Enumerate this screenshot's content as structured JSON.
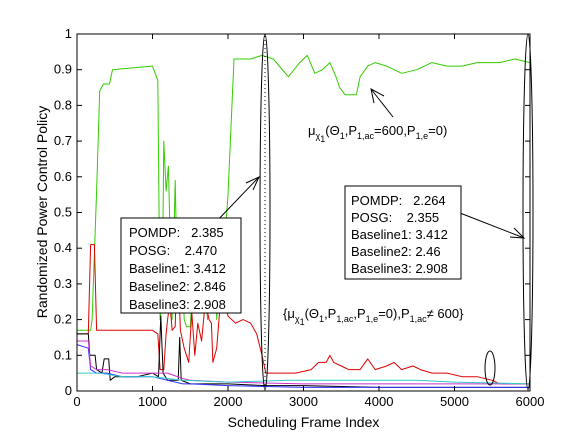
{
  "chart_data": {
    "type": "line",
    "xlabel": "Scheduling Frame Index",
    "ylabel": "Randomized Power Control Policy",
    "xlim": [
      0,
      6000
    ],
    "ylim": [
      0,
      1
    ],
    "x_ticks": [
      "0",
      "1000",
      "2000",
      "3000",
      "4000",
      "5000",
      "6000"
    ],
    "y_ticks": [
      "0",
      "0.1",
      "0.2",
      "0.3",
      "0.4",
      "0.5",
      "0.6",
      "0.7",
      "0.8",
      "0.9",
      "1"
    ],
    "grid": false,
    "series": [
      {
        "color": "#33cc00",
        "points": [
          [
            0,
            0.17
          ],
          [
            180,
            0.17
          ],
          [
            200,
            0.2
          ],
          [
            260,
            0.56
          ],
          [
            300,
            0.84
          ],
          [
            350,
            0.86
          ],
          [
            430,
            0.86
          ],
          [
            470,
            0.9
          ],
          [
            1000,
            0.91
          ],
          [
            1070,
            0.87
          ],
          [
            1100,
            0.2
          ],
          [
            1130,
            0.27
          ],
          [
            1150,
            0.7
          ],
          [
            1180,
            0.56
          ],
          [
            1210,
            0.63
          ],
          [
            1260,
            0.2
          ],
          [
            1300,
            0.59
          ],
          [
            1320,
            0.39
          ],
          [
            1380,
            0.46
          ],
          [
            1400,
            0.32
          ],
          [
            1420,
            0.2
          ],
          [
            1450,
            0.18
          ],
          [
            1500,
            0.18
          ],
          [
            1550,
            0.37
          ],
          [
            1600,
            0.4
          ],
          [
            1660,
            0.26
          ],
          [
            1700,
            0.28
          ],
          [
            1730,
            0.2
          ],
          [
            1790,
            0.41
          ],
          [
            1820,
            0.48
          ],
          [
            1850,
            0.2
          ],
          [
            1870,
            0.25
          ],
          [
            1920,
            0.47
          ],
          [
            1960,
            0.43
          ],
          [
            2000,
            0.55
          ],
          [
            2080,
            0.93
          ],
          [
            2300,
            0.93
          ],
          [
            2450,
            0.94
          ],
          [
            2600,
            0.93
          ],
          [
            2800,
            0.88
          ],
          [
            2950,
            0.92
          ],
          [
            3050,
            0.94
          ],
          [
            3150,
            0.89
          ],
          [
            3250,
            0.9
          ],
          [
            3350,
            0.92
          ],
          [
            3430,
            0.88
          ],
          [
            3480,
            0.85
          ],
          [
            3550,
            0.83
          ],
          [
            3700,
            0.83
          ],
          [
            3750,
            0.88
          ],
          [
            3850,
            0.91
          ],
          [
            3950,
            0.92
          ],
          [
            4100,
            0.91
          ],
          [
            4300,
            0.89
          ],
          [
            4500,
            0.9
          ],
          [
            4700,
            0.92
          ],
          [
            4900,
            0.91
          ],
          [
            5100,
            0.91
          ],
          [
            5300,
            0.92
          ],
          [
            5600,
            0.92
          ],
          [
            5800,
            0.93
          ],
          [
            6000,
            0.92
          ]
        ]
      },
      {
        "color": "#dd0000",
        "points": [
          [
            0,
            0.16
          ],
          [
            150,
            0.16
          ],
          [
            180,
            0.41
          ],
          [
            230,
            0.41
          ],
          [
            260,
            0.17
          ],
          [
            800,
            0.17
          ],
          [
            1000,
            0.17
          ],
          [
            1070,
            0.16
          ],
          [
            1100,
            0.06
          ],
          [
            1150,
            0.06
          ],
          [
            1180,
            0.16
          ],
          [
            1200,
            0.2
          ],
          [
            1230,
            0.25
          ],
          [
            1260,
            0.17
          ],
          [
            1300,
            0.18
          ],
          [
            1330,
            0.4
          ],
          [
            1370,
            0.17
          ],
          [
            1420,
            0.12
          ],
          [
            1480,
            0.08
          ],
          [
            1520,
            0.22
          ],
          [
            1560,
            0.1
          ],
          [
            1600,
            0.19
          ],
          [
            1650,
            0.14
          ],
          [
            1700,
            0.25
          ],
          [
            1750,
            0.2
          ],
          [
            1780,
            0.19
          ],
          [
            1800,
            0.08
          ],
          [
            1850,
            0.12
          ],
          [
            1900,
            0.25
          ],
          [
            1960,
            0.24
          ],
          [
            2000,
            0.21
          ],
          [
            2100,
            0.19
          ],
          [
            2200,
            0.2
          ],
          [
            2300,
            0.19
          ],
          [
            2380,
            0.16
          ],
          [
            2450,
            0.1
          ],
          [
            2500,
            0.05
          ],
          [
            2700,
            0.05
          ],
          [
            2900,
            0.05
          ],
          [
            3100,
            0.06
          ],
          [
            3200,
            0.08
          ],
          [
            3300,
            0.08
          ],
          [
            3350,
            0.1
          ],
          [
            3400,
            0.08
          ],
          [
            3500,
            0.07
          ],
          [
            3600,
            0.06
          ],
          [
            3750,
            0.06
          ],
          [
            3850,
            0.09
          ],
          [
            3950,
            0.06
          ],
          [
            4100,
            0.07
          ],
          [
            4200,
            0.08
          ],
          [
            4300,
            0.06
          ],
          [
            4450,
            0.07
          ],
          [
            4550,
            0.06
          ],
          [
            4700,
            0.05
          ],
          [
            4900,
            0.05
          ],
          [
            5100,
            0.04
          ],
          [
            5300,
            0.04
          ],
          [
            5500,
            0.03
          ],
          [
            5600,
            0.02
          ],
          [
            6000,
            0.02
          ]
        ]
      },
      {
        "color": "#000000",
        "points": [
          [
            0,
            0.16
          ],
          [
            150,
            0.16
          ],
          [
            170,
            0.1
          ],
          [
            240,
            0.1
          ],
          [
            260,
            0.06
          ],
          [
            330,
            0.05
          ],
          [
            360,
            0.09
          ],
          [
            420,
            0.09
          ],
          [
            440,
            0.03
          ],
          [
            500,
            0.04
          ],
          [
            800,
            0.04
          ],
          [
            1000,
            0.05
          ],
          [
            1080,
            0.04
          ],
          [
            1110,
            0.21
          ],
          [
            1140,
            0.05
          ],
          [
            1200,
            0.03
          ],
          [
            1300,
            0.03
          ],
          [
            1340,
            0.03
          ],
          [
            1360,
            0.15
          ],
          [
            1380,
            0.03
          ],
          [
            1500,
            0.02
          ],
          [
            2000,
            0.02
          ],
          [
            2500,
            0.015
          ],
          [
            3000,
            0.015
          ],
          [
            4000,
            0.01
          ],
          [
            5000,
            0.01
          ],
          [
            6000,
            0.01
          ]
        ]
      },
      {
        "color": "#3333ff",
        "points": [
          [
            0,
            0.13
          ],
          [
            150,
            0.12
          ],
          [
            180,
            0.06
          ],
          [
            260,
            0.05
          ],
          [
            400,
            0.05
          ],
          [
            600,
            0.04
          ],
          [
            800,
            0.04
          ],
          [
            1000,
            0.04
          ],
          [
            1200,
            0.03
          ],
          [
            1400,
            0.02
          ],
          [
            1500,
            0.02
          ],
          [
            2000,
            0.015
          ],
          [
            3000,
            0.01
          ],
          [
            4000,
            0.01
          ],
          [
            5000,
            0.01
          ],
          [
            6000,
            0.01
          ]
        ]
      },
      {
        "color": "#cc33cc",
        "points": [
          [
            0,
            0.14
          ],
          [
            150,
            0.14
          ],
          [
            180,
            0.07
          ],
          [
            260,
            0.06
          ],
          [
            400,
            0.06
          ],
          [
            600,
            0.05
          ],
          [
            800,
            0.05
          ],
          [
            1000,
            0.05
          ],
          [
            1200,
            0.05
          ],
          [
            1400,
            0.035
          ],
          [
            1500,
            0.03
          ],
          [
            2000,
            0.025
          ],
          [
            3000,
            0.02
          ],
          [
            4000,
            0.02
          ],
          [
            5000,
            0.02
          ],
          [
            6000,
            0.02
          ]
        ]
      },
      {
        "color": "#33cccc",
        "points": [
          [
            0,
            0.05
          ],
          [
            300,
            0.05
          ],
          [
            600,
            0.04
          ],
          [
            1000,
            0.04
          ],
          [
            1400,
            0.03
          ],
          [
            2000,
            0.025
          ],
          [
            2800,
            0.03
          ],
          [
            3500,
            0.03
          ],
          [
            4000,
            0.03
          ],
          [
            4500,
            0.03
          ],
          [
            5000,
            0.025
          ],
          [
            6000,
            0.02
          ]
        ]
      }
    ],
    "annotations": {
      "left_box": {
        "lines": [
          "POMDP:   2.385",
          "POSG:    2.470",
          "Baseline1: 3.412",
          "Baseline2: 2.846",
          "Baseline3: 2.908"
        ]
      },
      "right_box": {
        "lines": [
          "POMDP:   2.264",
          "POSG:    2.355",
          "Baseline1: 3.412",
          "Baseline2: 2.46",
          "Baseline3: 2.908"
        ]
      },
      "upper_label": {
        "mu": "μ",
        "chi": "χ",
        "chi_sub": "1",
        "rest": "(Θ",
        "theta_sub": "1",
        "p1": ",P",
        "p1_sub": "1,ac",
        "p1_val": "=600,P",
        "p2_sub": "1,e",
        "p2_val": "=0)"
      },
      "lower_label": {
        "open": "{μ",
        "chi": "χ",
        "chi_sub": "1",
        "rest": "(Θ",
        "theta_sub": "1",
        "p1": ",P",
        "p1_sub": "1,ac",
        "p2": ",P",
        "p2_sub": "1,e",
        "p2_val": "=0),P",
        "p3_sub": "1,ac",
        "tail": "≠ 600}"
      }
    }
  }
}
